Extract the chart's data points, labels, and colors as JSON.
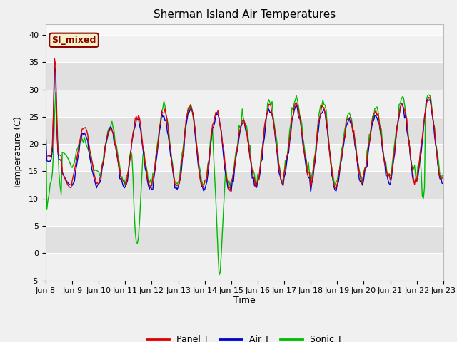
{
  "title": "Sherman Island Air Temperatures",
  "xlabel": "Time",
  "ylabel": "Temperature (C)",
  "ylim": [
    -5,
    42
  ],
  "yticks": [
    -5,
    0,
    5,
    10,
    15,
    20,
    25,
    30,
    35,
    40
  ],
  "xtick_labels": [
    "Jun 8",
    "Jun 9",
    "Jun 10",
    "Jun 11",
    "Jun 12",
    "Jun 13",
    "Jun 14",
    "Jun 15",
    "Jun 16",
    "Jun 17",
    "Jun 18",
    "Jun 19",
    "Jun 20",
    "Jun 21",
    "Jun 22",
    "Jun 23"
  ],
  "annotation_text": "SI_mixed",
  "annotation_bg": "#f5f0c8",
  "annotation_border": "#8b0000",
  "panel_color": "#dd0000",
  "air_color": "#0000cc",
  "sonic_color": "#00bb00",
  "legend_labels": [
    "Panel T",
    "Air T",
    "Sonic T"
  ],
  "plot_bg": "#f8f8f8",
  "band_light": "#f0f0f0",
  "band_dark": "#e0e0e0",
  "fig_bg": "#f0f0f0",
  "title_fontsize": 11,
  "label_fontsize": 9,
  "tick_fontsize": 8,
  "legend_fontsize": 9
}
